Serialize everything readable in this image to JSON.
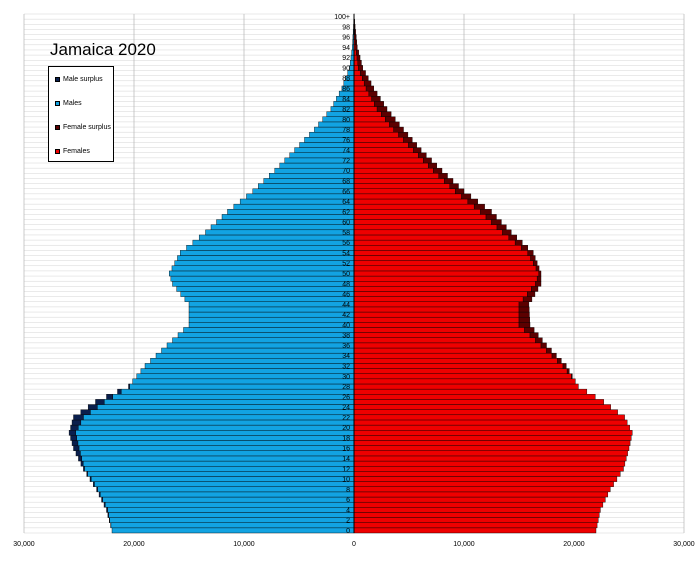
{
  "title": "Jamaica 2020",
  "legend": [
    {
      "label": "Male surplus",
      "color": "#0a1f4d"
    },
    {
      "label": "Males",
      "color": "#12a3e2"
    },
    {
      "label": "Female surplus",
      "color": "#5c0000"
    },
    {
      "label": "Females",
      "color": "#ee0000"
    }
  ],
  "chart_data": {
    "type": "bar",
    "orientation": "horizontal-pyramid",
    "title": "Jamaica 2020",
    "x_tick_labels": [
      "30,000",
      "20,000",
      "10,000",
      "0",
      "10,000",
      "20,000",
      "30,000"
    ],
    "xlim": [
      -30000,
      30000
    ],
    "y_tick_labels": [
      "0",
      "2",
      "4",
      "6",
      "8",
      "10",
      "12",
      "14",
      "16",
      "18",
      "20",
      "22",
      "24",
      "26",
      "28",
      "30",
      "32",
      "34",
      "36",
      "38",
      "40",
      "42",
      "44",
      "46",
      "48",
      "50",
      "52",
      "54",
      "56",
      "58",
      "60",
      "62",
      "64",
      "66",
      "68",
      "70",
      "72",
      "74",
      "76",
      "78",
      "80",
      "82",
      "84",
      "86",
      "88",
      "90",
      "92",
      "94",
      "96",
      "98",
      "100+"
    ],
    "grid": true,
    "legend_position": "top-left",
    "age_key_points": [
      0,
      4,
      8,
      12,
      16,
      19,
      22,
      25,
      28,
      32,
      36,
      40,
      44,
      48,
      50,
      54,
      58,
      62,
      66,
      70,
      74,
      78,
      82,
      86,
      90,
      94,
      98,
      100
    ],
    "males_key_values": [
      22000,
      22500,
      23400,
      24600,
      25500,
      25900,
      25500,
      23500,
      20500,
      19000,
      17000,
      15000,
      15000,
      16500,
      16800,
      15800,
      13500,
      11500,
      9200,
      7200,
      5400,
      3600,
      2100,
      1100,
      400,
      150,
      50,
      15
    ],
    "females_key_values": [
      22000,
      22400,
      23300,
      24500,
      25000,
      25300,
      24600,
      22700,
      20400,
      19300,
      17500,
      16000,
      15900,
      17000,
      17000,
      16300,
      14300,
      12500,
      10000,
      8000,
      6100,
      4500,
      3000,
      1800,
      800,
      300,
      100,
      30
    ],
    "series": [
      {
        "name": "Males",
        "color": "#12a3e2"
      },
      {
        "name": "Male surplus",
        "color": "#0a1f4d"
      },
      {
        "name": "Females",
        "color": "#ee0000"
      },
      {
        "name": "Female surplus",
        "color": "#5c0000"
      }
    ]
  }
}
